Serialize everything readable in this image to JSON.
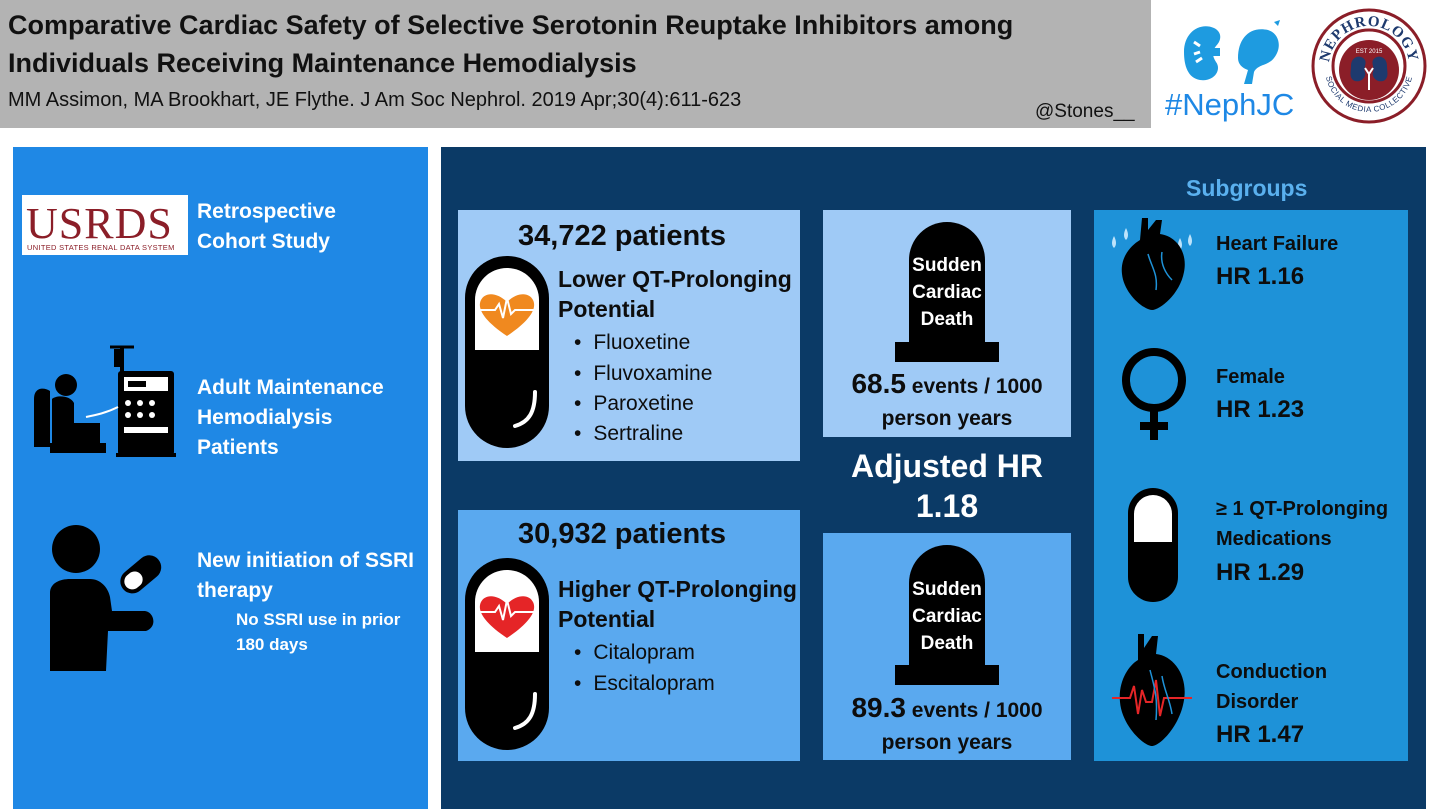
{
  "header": {
    "title": "Comparative Cardiac Safety of Selective Serotonin Reuptake Inhibitors among Individuals Receiving Maintenance Hemodialysis",
    "citation": "MM Assimon, MA Brookhart, JE Flythe. J Am Soc Nephrol. 2019 Apr;30(4):611-623",
    "handle": "@Stones__"
  },
  "logos": {
    "nephjc": "#NephJC",
    "seal_top": "NEPHROLOGY",
    "seal_bottom": "SOCIAL MEDIA COLLECTIVE",
    "seal_est": "EST 2015"
  },
  "study": {
    "usrds_logo": "USRDS",
    "usrds_sub": "UNITED STATES RENAL DATA SYSTEM",
    "design": "Retrospective Cohort Study",
    "population": "Adult Maintenance Hemodialysis Patients",
    "exposure": "New initiation of SSRI therapy",
    "exposure_note": "No SSRI use in prior 180 days"
  },
  "lower": {
    "patients": "34,722 patients",
    "title": "Lower QT-Prolonging Potential",
    "drugs": [
      "Fluoxetine",
      "Fluvoxamine",
      "Paroxetine",
      "Sertraline"
    ]
  },
  "higher": {
    "patients": "30,932 patients",
    "title": "Higher QT-Prolonging Potential",
    "drugs": [
      "Citalopram",
      "Escitalopram"
    ]
  },
  "scd": {
    "label": "Sudden Cardiac Death",
    "lower_rate": "68.5",
    "higher_rate": "89.3",
    "unit": " events / 1000 person years"
  },
  "adjusted": "Adjusted HR 1.18",
  "subgroups": {
    "heading": "Subgroups",
    "items": [
      {
        "label": "Heart Failure",
        "hr": "HR 1.16"
      },
      {
        "label": "Female",
        "hr": "HR 1.23"
      },
      {
        "label": "≥ 1 QT-Prolonging Medications",
        "hr": "HR 1.29"
      },
      {
        "label": "Conduction Disorder",
        "hr": "HR 1.47"
      }
    ]
  },
  "colors": {
    "header_bg": "#b3b3b3",
    "left_panel": "#1f88e5",
    "dark_panel": "#0b3a66",
    "light_box": "#9fcaf6",
    "mid_box": "#5aa9ef",
    "subgroup_box": "#1e92d8",
    "lower_heart": "#f0891f",
    "higher_heart": "#e52527"
  }
}
